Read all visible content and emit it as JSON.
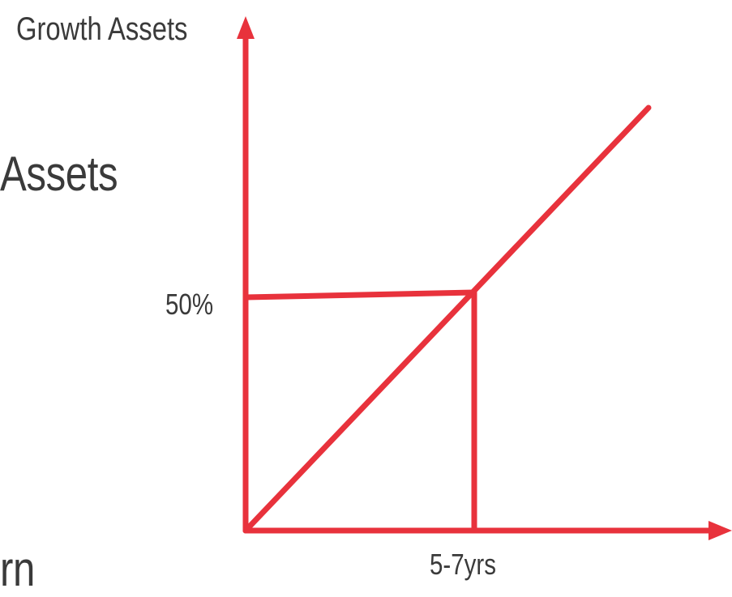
{
  "background_text": {
    "assets_fragment": "Assets",
    "rn_fragment": "rn"
  },
  "diagram": {
    "y_axis_title": "Growth Assets",
    "y_marker_label": "50%",
    "x_marker_label": "5-7yrs",
    "line_color": "#e8323c",
    "text_color": "#3a3a3a"
  }
}
